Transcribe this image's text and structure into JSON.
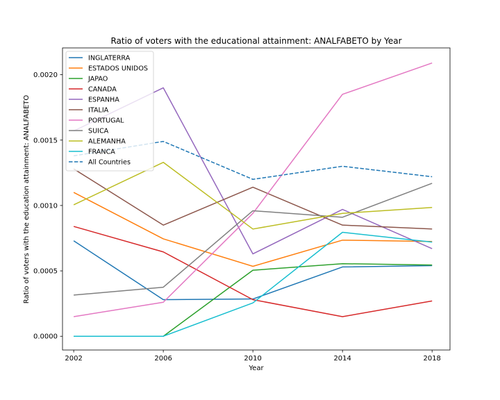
{
  "chart_data": {
    "type": "line",
    "title": "Ratio of voters with the educational attainment: ANALFABETO by Year",
    "xlabel": "Year",
    "ylabel": "Ratio of voters with the education attainment: ANALFABETO",
    "x": [
      2002,
      2006,
      2010,
      2014,
      2018
    ],
    "x_ticks": [
      "2002",
      "2006",
      "2010",
      "2014",
      "2018"
    ],
    "y_ticks": [
      "0.0000",
      "0.0005",
      "0.0010",
      "0.0015",
      "0.0020"
    ],
    "y_tick_values": [
      0.0,
      0.0005,
      0.001,
      0.0015,
      0.002
    ],
    "xlim": [
      2001.5,
      2018.8
    ],
    "ylim": [
      -0.000105,
      0.002205
    ],
    "grid": false,
    "legend_position": "upper-left",
    "series": [
      {
        "name": "INGLATERRA",
        "color": "#1f77b4",
        "dashed": false,
        "values": [
          0.00073,
          0.00028,
          0.000285,
          0.00053,
          0.00054
        ]
      },
      {
        "name": "ESTADOS UNIDOS",
        "color": "#ff7f0e",
        "dashed": false,
        "values": [
          0.0011,
          0.000745,
          0.000535,
          0.000735,
          0.000725
        ]
      },
      {
        "name": "JAPAO",
        "color": "#2ca02c",
        "dashed": false,
        "values": [
          0.0,
          0.0,
          0.000505,
          0.000555,
          0.000545
        ]
      },
      {
        "name": "CANADA",
        "color": "#d62728",
        "dashed": false,
        "values": [
          0.00084,
          0.000645,
          0.00028,
          0.00015,
          0.00027
        ]
      },
      {
        "name": "ESPANHA",
        "color": "#9467bd",
        "dashed": false,
        "values": [
          0.00157,
          0.0019,
          0.00063,
          0.00097,
          0.00067
        ]
      },
      {
        "name": "ITALIA",
        "color": "#8c564b",
        "dashed": false,
        "values": [
          0.00128,
          0.00085,
          0.00114,
          0.00085,
          0.00082
        ]
      },
      {
        "name": "PORTUGAL",
        "color": "#e377c2",
        "dashed": false,
        "values": [
          0.00015,
          0.00026,
          0.00094,
          0.00185,
          0.00209
        ]
      },
      {
        "name": "SUICA",
        "color": "#7f7f7f",
        "dashed": false,
        "values": [
          0.000315,
          0.000375,
          0.00096,
          0.00091,
          0.00117
        ]
      },
      {
        "name": "ALEMANHA",
        "color": "#bcbd22",
        "dashed": false,
        "values": [
          0.001005,
          0.00133,
          0.00082,
          0.00094,
          0.000985
        ]
      },
      {
        "name": "FRANCA",
        "color": "#17becf",
        "dashed": false,
        "values": [
          0.0,
          0.0,
          0.000255,
          0.000795,
          0.00072
        ]
      },
      {
        "name": "All Countries",
        "color": "#1f77b4",
        "dashed": true,
        "values": [
          0.00138,
          0.00149,
          0.0012,
          0.0013,
          0.00122
        ]
      }
    ]
  }
}
